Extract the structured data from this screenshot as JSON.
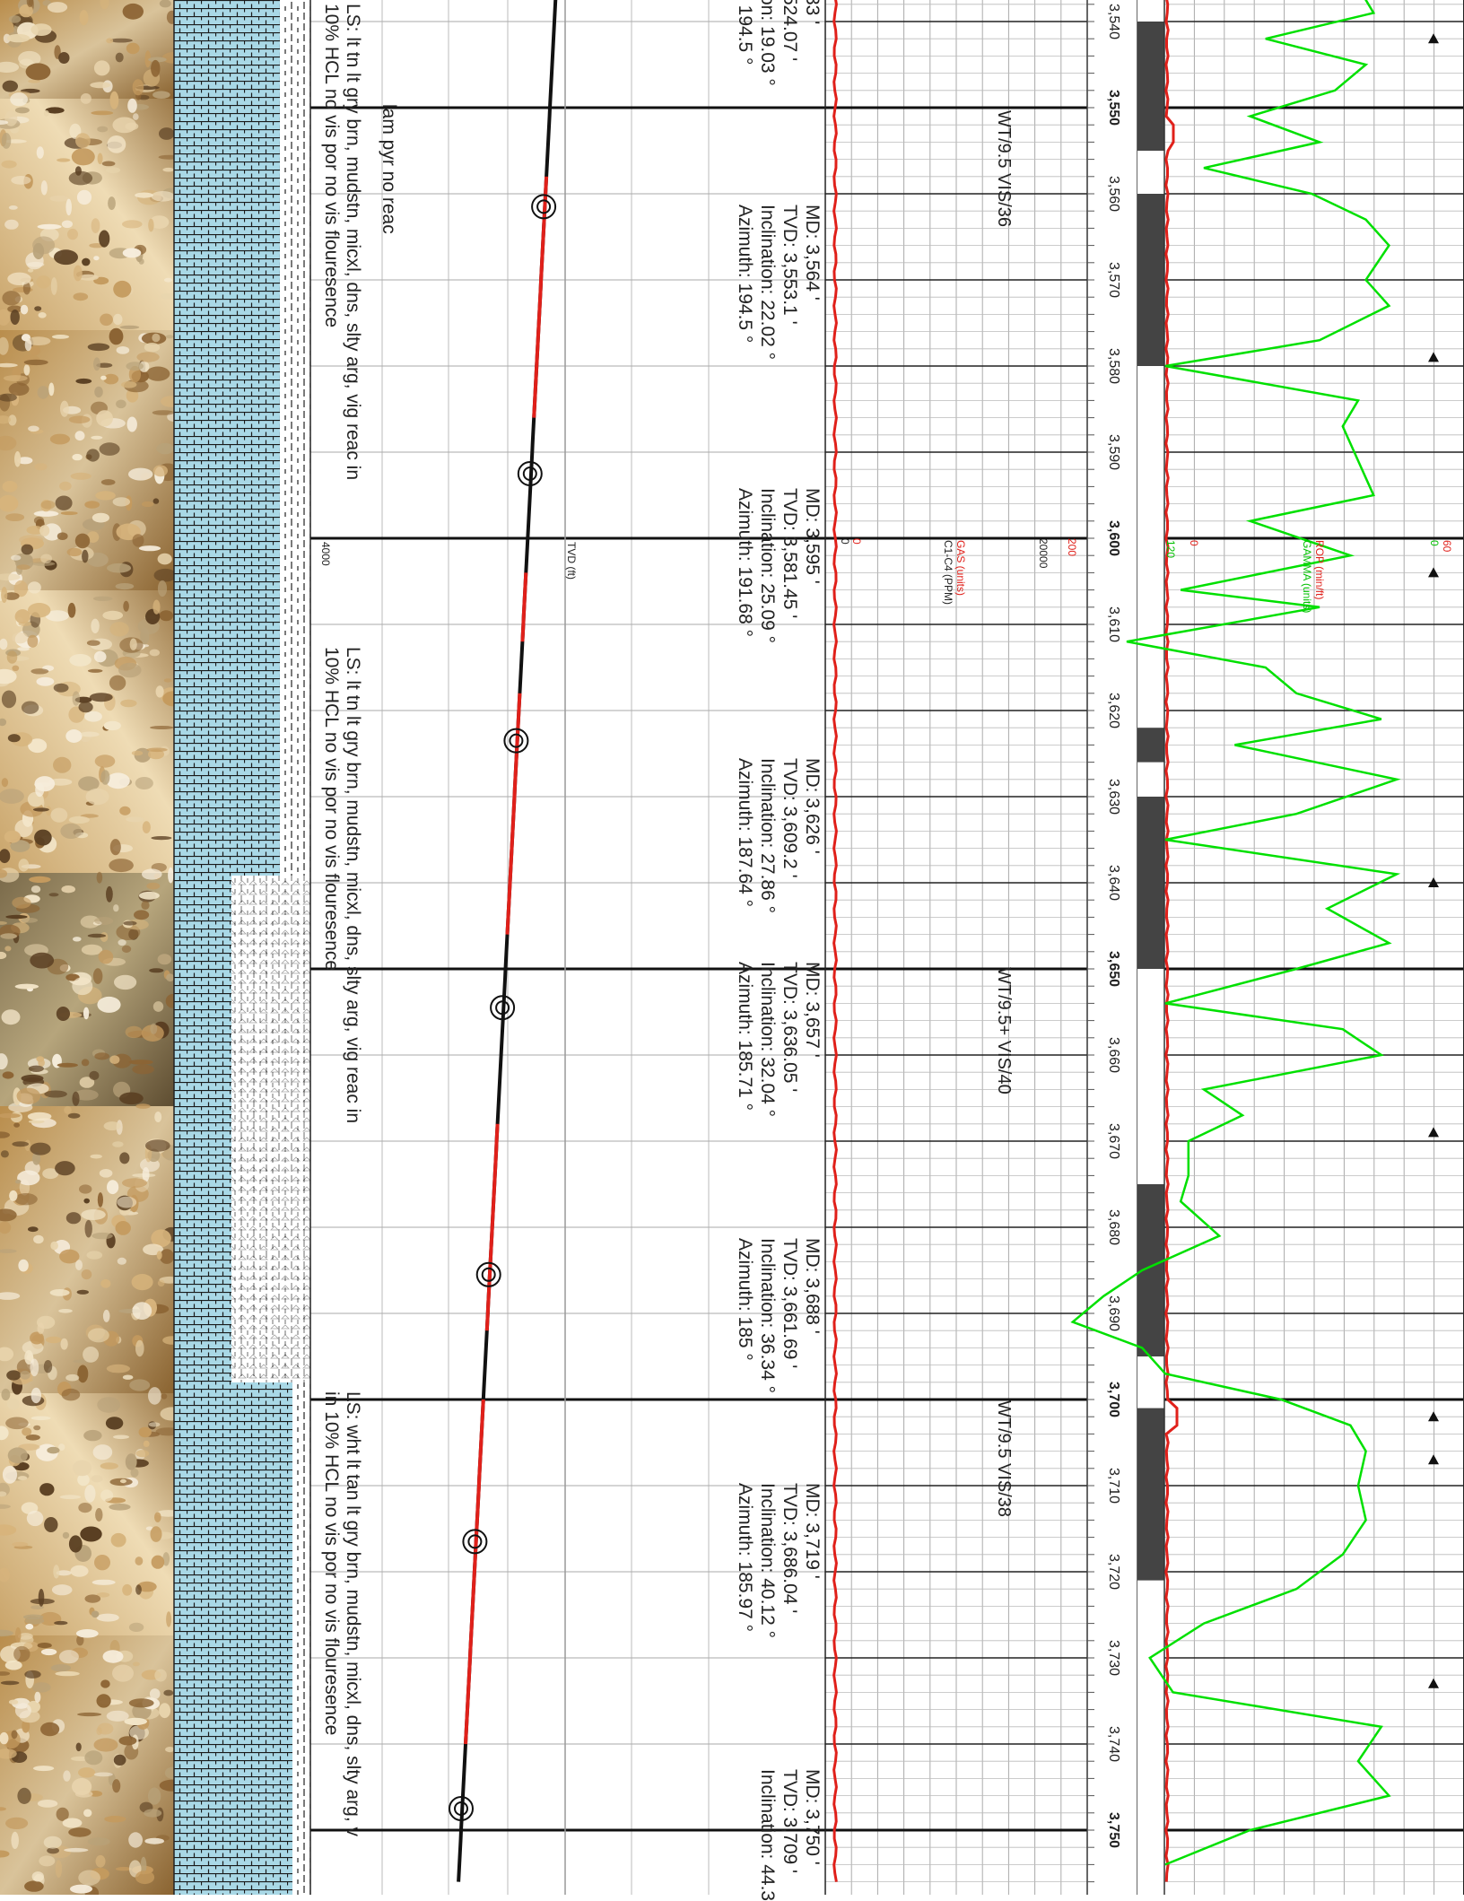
{
  "depth_track": {
    "labels": [
      "3,540",
      "3,550",
      "3,560",
      "3,570",
      "3,580",
      "3,590",
      "3,600",
      "3,610",
      "3,620",
      "3,630",
      "3,640",
      "3,650",
      "3,660",
      "3,670",
      "3,680",
      "3,690",
      "3,700",
      "3,710",
      "3,720",
      "3,730",
      "3,740",
      "3,750"
    ],
    "major": [
      "3,550",
      "3,600",
      "3,650",
      "3,700",
      "3,750"
    ]
  },
  "lithology_descriptions": [
    {
      "text": "lam pyr no reac"
    },
    {
      "text": "LS: lt tn lt gry brn, mudstn, micxl, dns, slty arg, vig reac in\n10% HCL no vis por no vis flouresence"
    },
    {
      "text": "LS: lt tn lt gry brn, mudstn, micxl, dns, slty arg, vig reac in\n10% HCL no vis por no vis flouresence"
    },
    {
      "text": "LS: wht lt tan lt gry brn, mudstn, micxl, dns, slty arg, v\nin 10% HCL no vis por no vis flouresence"
    }
  ],
  "surveys": [
    {
      "text": "33 '\n524.07 '\non: 19.03 °\n: 194.5 °"
    },
    {
      "text": "MD: 3,564 '\nTVD: 3,553.1 '\nInclination: 22.02 °\nAzimuth: 194.5 °"
    },
    {
      "text": "MD: 3,595 '\nTVD: 3,581.45 '\nInclination: 25.09 °\nAzimuth: 191.68 °"
    },
    {
      "text": "MD: 3,626 '\nTVD: 3,609.2 '\nInclination: 27.86 °\nAzimuth: 187.64 °"
    },
    {
      "text": "MD: 3,657 '\nTVD: 3,636.05 '\nInclination: 32.04 °\nAzimuth: 185.71 °"
    },
    {
      "text": "MD: 3,688 '\nTVD: 3,661.69 '\nInclination: 36.34 °\nAzimuth: 185 °"
    },
    {
      "text": "MD: 3,719 '\nTVD: 3,686.04 '\nInclination: 40.12 °\nAzimuth: 185.97 °"
    },
    {
      "text": "MD: 3,750 '\nTVD: 3,709 '\nInclination: 44.3"
    }
  ],
  "mud_properties": [
    {
      "text": "WT/9.5 VIS/36"
    },
    {
      "text": "WT/9.5+ VIS/40"
    },
    {
      "text": "WT/9.5 VIS/38"
    }
  ],
  "tvd_scale": {
    "label": "TVD (ft)",
    "value": "4000"
  },
  "gas_track": {
    "label": "GAS (units)",
    "sublabel": "C1-C4 (PPM)",
    "scale_min": "0",
    "scale_max": "200",
    "ppm_min": "0",
    "ppm_max": "20000",
    "color": "#e0201a"
  },
  "rop_track": {
    "rop_label": "ROP (min/ft)",
    "gamma_label": "GAMMA (units)",
    "rop_min": "0",
    "rop_max": "60",
    "gamma_min": "120",
    "gamma_max": "0",
    "rop_color": "#e0201a",
    "gamma_color": "#00e000"
  },
  "core_marker_ranges": [
    [
      3540,
      3555
    ],
    [
      3560,
      3580
    ],
    [
      3622,
      3626
    ],
    [
      3630,
      3650
    ],
    [
      3675,
      3695
    ],
    [
      3701,
      3721
    ]
  ],
  "colors": {
    "limestone": "#a9d8e6",
    "grid": "#888888",
    "survey_path": "#111111",
    "highlight": "#e0201a"
  },
  "chart_data": {
    "type": "line",
    "title": "",
    "depth_range_ft": [
      3536,
      3756
    ],
    "gamma_tracepoints_depth": [
      3536,
      3539,
      3542,
      3545,
      3548,
      3551,
      3554,
      3557,
      3560,
      3563,
      3566,
      3570,
      3573,
      3577,
      3580,
      3584,
      3587,
      3591,
      3595,
      3598,
      3602,
      3606,
      3608,
      3612,
      3615,
      3618,
      3621,
      3624,
      3628,
      3632,
      3635,
      3639,
      3643,
      3647,
      3650,
      3654,
      3657,
      3660,
      3664,
      3667,
      3670,
      3674,
      3677,
      3681,
      3685,
      3688,
      3691,
      3694,
      3697,
      3700,
      3703,
      3706,
      3710,
      3714,
      3718,
      3722,
      3726,
      3730,
      3734,
      3738,
      3742,
      3746,
      3750,
      3754
    ],
    "gamma_values": [
      10,
      8,
      22,
      9,
      13,
      24,
      15,
      30,
      16,
      9,
      6,
      9,
      6,
      15,
      35,
      10,
      12,
      10,
      8,
      24,
      11,
      33,
      15,
      40,
      22,
      18,
      7,
      26,
      5,
      18,
      35,
      5,
      14,
      6,
      18,
      35,
      12,
      7,
      30,
      25,
      32,
      32,
      33,
      28,
      38,
      43,
      47,
      38,
      35,
      20,
      11,
      9,
      10,
      9,
      12,
      18,
      30,
      37,
      34,
      7,
      10,
      6,
      24,
      35
    ],
    "rop_flat_value": 2
  }
}
